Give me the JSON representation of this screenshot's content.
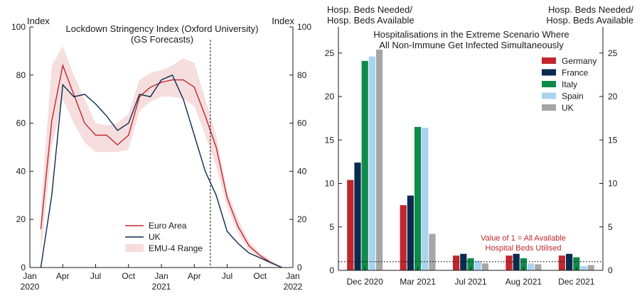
{
  "chart_data": [
    {
      "type": "line",
      "title": "Lockdown Stringency Index (Oxford University)",
      "subtitle": "(GS Forecasts)",
      "ylabel_left": "Index",
      "ylabel_right": "Index",
      "ylim": [
        0,
        100
      ],
      "yticks": [
        0,
        20,
        40,
        60,
        80,
        100
      ],
      "xlim": [
        "2020-01",
        "2022-01"
      ],
      "xticks": [
        {
          "x": "2020-01",
          "label": "Jan",
          "sublabel": "2020"
        },
        {
          "x": "2020-04",
          "label": "Apr",
          "sublabel": ""
        },
        {
          "x": "2020-07",
          "label": "Jul",
          "sublabel": ""
        },
        {
          "x": "2020-10",
          "label": "Oct",
          "sublabel": ""
        },
        {
          "x": "2021-01",
          "label": "Jan",
          "sublabel": "2021"
        },
        {
          "x": "2021-04",
          "label": "Apr",
          "sublabel": ""
        },
        {
          "x": "2021-07",
          "label": "Jul",
          "sublabel": ""
        },
        {
          "x": "2021-10",
          "label": "Oct",
          "sublabel": ""
        },
        {
          "x": "2022-01",
          "label": "Jan",
          "sublabel": "2022"
        }
      ],
      "forecast_start": "2021-05-15",
      "x": [
        "2020-02",
        "2020-03",
        "2020-04",
        "2020-05",
        "2020-06",
        "2020-07",
        "2020-08",
        "2020-09",
        "2020-10",
        "2020-11",
        "2020-12",
        "2021-01",
        "2021-02",
        "2021-03",
        "2021-04",
        "2021-05",
        "2021-06",
        "2021-07",
        "2021-08",
        "2021-09",
        "2021-10",
        "2021-11",
        "2021-12"
      ],
      "series": [
        {
          "name": "Euro Area",
          "color": "#c0272d",
          "values": [
            16,
            61,
            84,
            72,
            60,
            55,
            55,
            51,
            55,
            71,
            75,
            77,
            78,
            78,
            75,
            63,
            50,
            29,
            17,
            9,
            5,
            2,
            0
          ]
        },
        {
          "name": "UK",
          "color": "#0b2a4f",
          "values": [
            0,
            30,
            76,
            71,
            72,
            68,
            63,
            57,
            60,
            72,
            71,
            78,
            80,
            70,
            55,
            40,
            30,
            15,
            10,
            6,
            4,
            2,
            0
          ]
        }
      ],
      "band": {
        "name": "EMU-4 Range",
        "color": "#f6dede",
        "low": [
          5,
          50,
          70,
          60,
          52,
          48,
          48,
          48,
          49,
          65,
          69,
          71,
          71,
          70,
          67,
          55,
          42,
          25,
          14,
          7,
          4,
          1,
          0
        ],
        "high": [
          25,
          84,
          92,
          80,
          70,
          60,
          59,
          60,
          64,
          78,
          81,
          82,
          84,
          87,
          85,
          70,
          55,
          32,
          20,
          11,
          6,
          3,
          0
        ]
      }
    },
    {
      "type": "bar",
      "title": "Hospitalisations in the Extreme Scenario Where",
      "title_line2": "All Non-Immune Get Infected Simultaneously",
      "ylabel_left": "Hosp. Beds Needed/",
      "ylabel_left_line2": "Hosp. Beds Available",
      "ylabel_right": "Hosp. Beds Needed/",
      "ylabel_right_line2": "Hosp. Beds Available",
      "ylim": [
        0,
        28
      ],
      "yticks": [
        0,
        5,
        10,
        15,
        20,
        25
      ],
      "categories": [
        "Dec 2020",
        "Mar 2021",
        "Jul 2021",
        "Aug 2021",
        "Dec 2021"
      ],
      "series": [
        {
          "name": "Germany",
          "color": "#c0272d",
          "values": [
            10.4,
            7.5,
            1.7,
            1.7,
            1.7
          ]
        },
        {
          "name": "France",
          "color": "#0b2a4f",
          "values": [
            12.4,
            8.6,
            1.9,
            1.9,
            1.9
          ]
        },
        {
          "name": "Italy",
          "color": "#0e8a4a",
          "values": [
            24.1,
            16.5,
            1.4,
            1.4,
            1.5
          ]
        },
        {
          "name": "Spain",
          "color": "#a9d4f0",
          "values": [
            24.6,
            16.4,
            1.1,
            0.8,
            0.5
          ]
        },
        {
          "name": "UK",
          "color": "#a6a6a6",
          "values": [
            25.4,
            4.2,
            0.8,
            0.7,
            0.6
          ]
        }
      ],
      "reference_line": {
        "value": 1,
        "style": "dotted",
        "label": "Value of 1 = All Available",
        "label_line2": "Hospital Beds Utilised"
      }
    }
  ]
}
